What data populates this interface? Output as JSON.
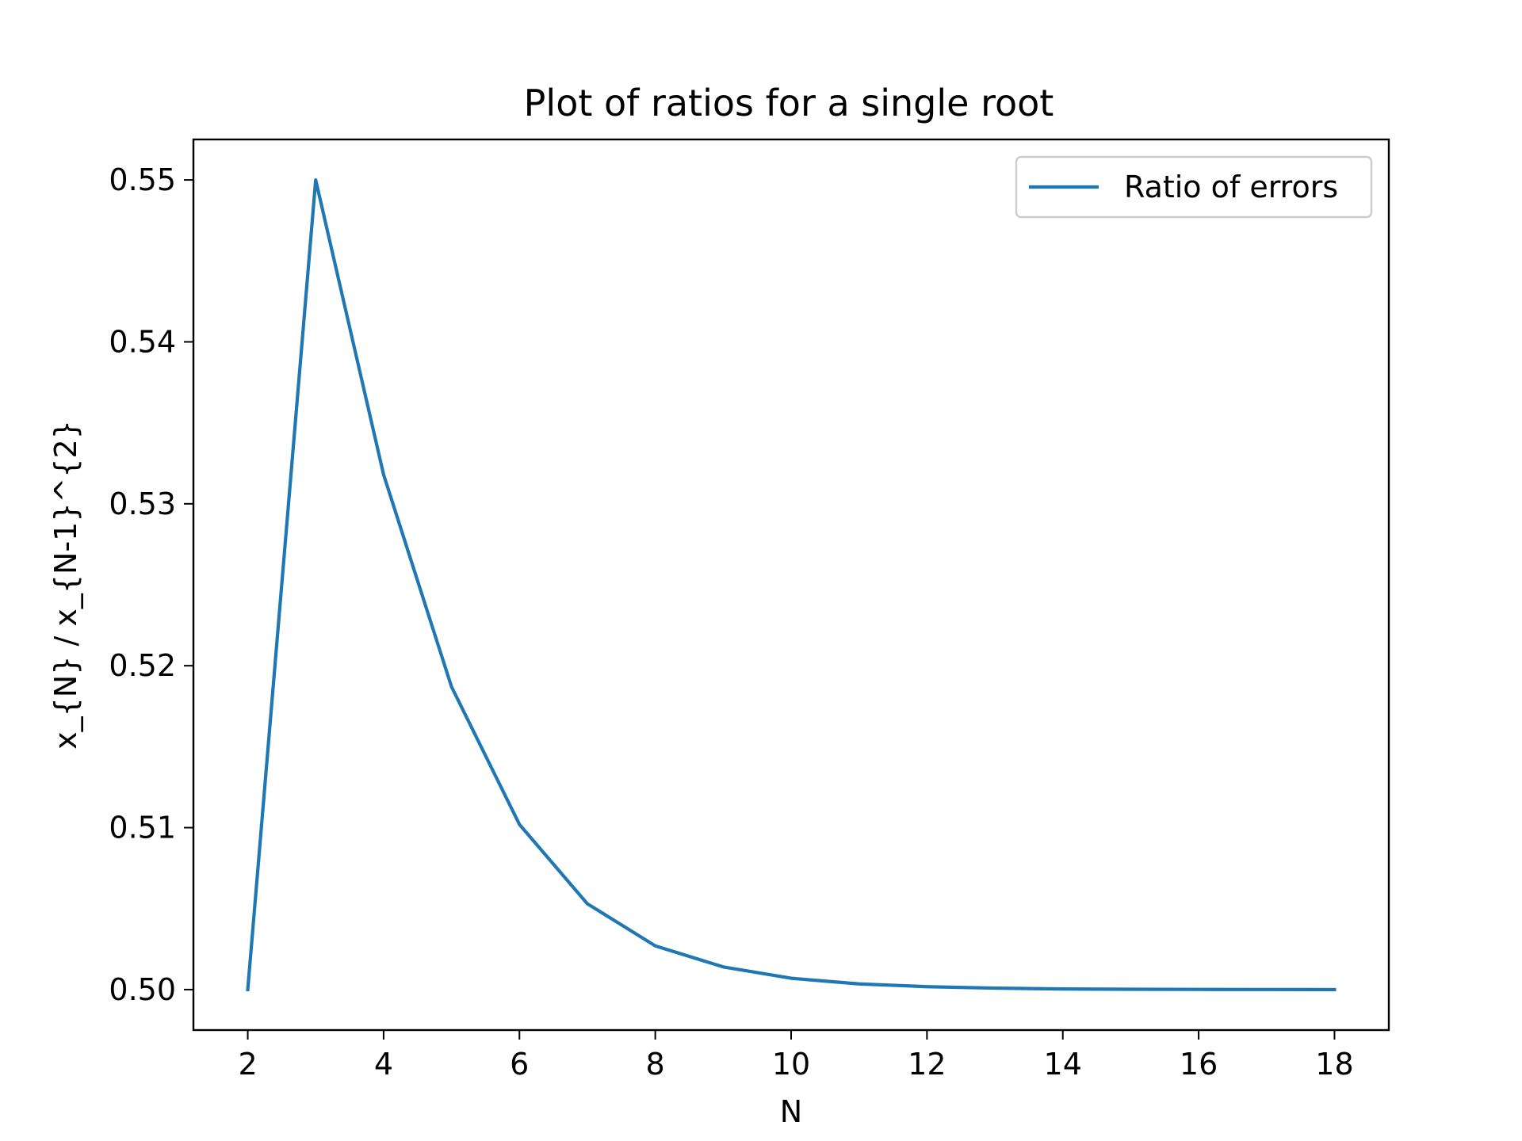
{
  "chart_data": {
    "type": "line",
    "title": "Plot of ratios for a single root",
    "xlabel": "N",
    "ylabel": "x_{N} / x_{N-1}^{2}",
    "xlim": [
      1.2,
      18.8
    ],
    "ylim": [
      0.4975,
      0.5525
    ],
    "x_ticks": [
      2,
      4,
      6,
      8,
      10,
      12,
      14,
      16,
      18
    ],
    "y_ticks": [
      0.5,
      0.51,
      0.52,
      0.53,
      0.54,
      0.55
    ],
    "y_tick_labels": [
      "0.50",
      "0.51",
      "0.52",
      "0.53",
      "0.54",
      "0.55"
    ],
    "grid": false,
    "legend_position": "top-right",
    "series": [
      {
        "name": "Ratio of errors",
        "color": "#1f77b4",
        "x": [
          2,
          3,
          4,
          5,
          6,
          7,
          8,
          9,
          10,
          11,
          12,
          13,
          14,
          15,
          16,
          17,
          18
        ],
        "y": [
          0.5,
          0.55,
          0.5318,
          0.5187,
          0.5102,
          0.5053,
          0.5027,
          0.5014,
          0.5007,
          0.50035,
          0.50018,
          0.50009,
          0.50004,
          0.50002,
          0.50001,
          0.500005,
          0.5
        ]
      }
    ]
  }
}
